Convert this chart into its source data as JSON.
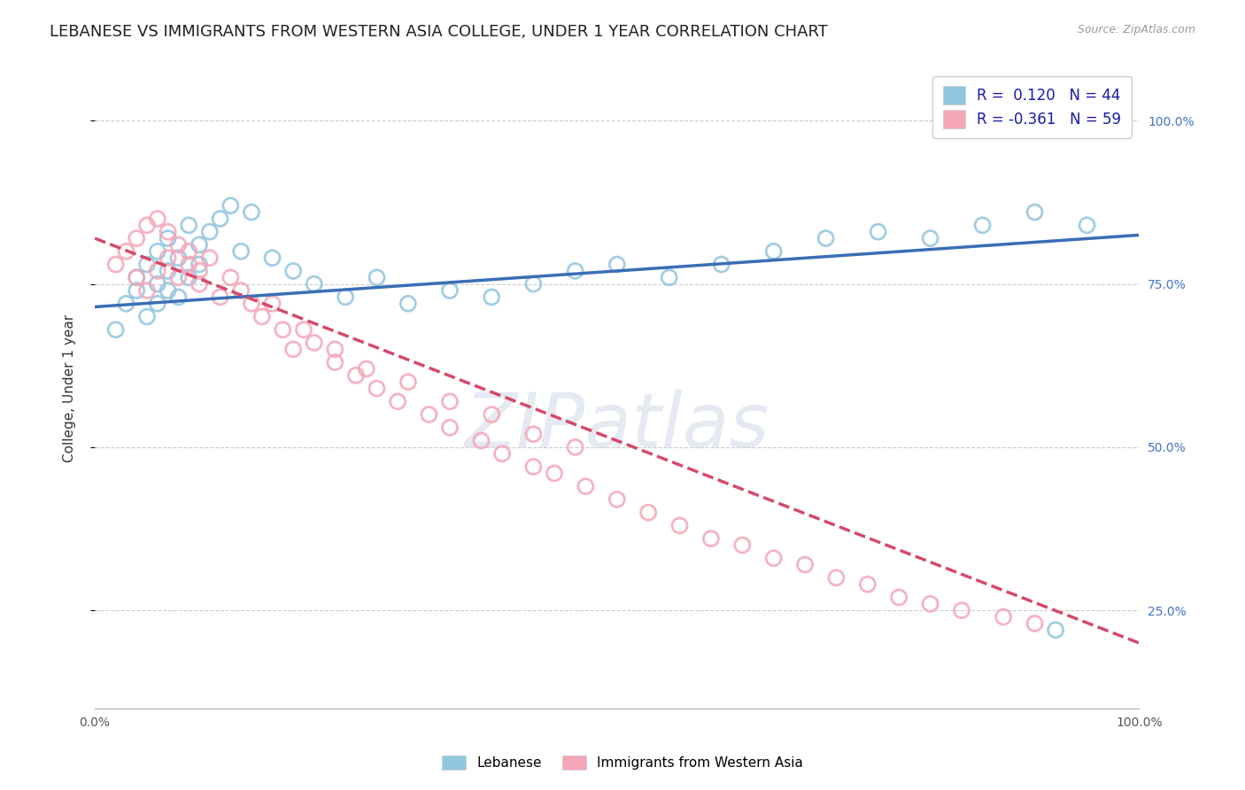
{
  "title": "LEBANESE VS IMMIGRANTS FROM WESTERN ASIA COLLEGE, UNDER 1 YEAR CORRELATION CHART",
  "source_text": "Source: ZipAtlas.com",
  "ylabel": "College, Under 1 year",
  "legend_label_blue": "Lebanese",
  "legend_label_pink": "Immigrants from Western Asia",
  "R_blue": 0.12,
  "N_blue": 44,
  "R_pink": -0.361,
  "N_pink": 59,
  "xlim": [
    0.0,
    1.0
  ],
  "ylim": [
    0.1,
    1.08
  ],
  "x_ticks": [
    0.0,
    0.25,
    0.5,
    0.75,
    1.0
  ],
  "y_ticks": [
    0.25,
    0.5,
    0.75,
    1.0
  ],
  "y_tick_labels": [
    "25.0%",
    "50.0%",
    "75.0%",
    "100.0%"
  ],
  "color_blue": "#92c5de",
  "color_pink": "#f4a6b8",
  "line_color_blue": "#3a6eb5",
  "line_color_pink": "#d44a6a",
  "blue_x": [
    0.02,
    0.03,
    0.04,
    0.04,
    0.05,
    0.05,
    0.06,
    0.06,
    0.06,
    0.07,
    0.07,
    0.07,
    0.08,
    0.08,
    0.09,
    0.09,
    0.1,
    0.1,
    0.11,
    0.12,
    0.13,
    0.14,
    0.15,
    0.17,
    0.19,
    0.21,
    0.24,
    0.27,
    0.3,
    0.34,
    0.38,
    0.42,
    0.46,
    0.5,
    0.55,
    0.6,
    0.65,
    0.7,
    0.75,
    0.8,
    0.85,
    0.9,
    0.95,
    0.92
  ],
  "blue_y": [
    0.68,
    0.72,
    0.74,
    0.76,
    0.7,
    0.78,
    0.72,
    0.75,
    0.8,
    0.74,
    0.77,
    0.82,
    0.73,
    0.79,
    0.76,
    0.84,
    0.78,
    0.81,
    0.83,
    0.85,
    0.87,
    0.8,
    0.86,
    0.79,
    0.77,
    0.75,
    0.73,
    0.76,
    0.72,
    0.74,
    0.73,
    0.75,
    0.77,
    0.78,
    0.76,
    0.78,
    0.8,
    0.82,
    0.83,
    0.82,
    0.84,
    0.86,
    0.84,
    0.22
  ],
  "pink_x": [
    0.02,
    0.03,
    0.04,
    0.04,
    0.05,
    0.05,
    0.06,
    0.06,
    0.07,
    0.07,
    0.08,
    0.08,
    0.09,
    0.09,
    0.1,
    0.1,
    0.11,
    0.12,
    0.13,
    0.14,
    0.15,
    0.16,
    0.18,
    0.19,
    0.21,
    0.23,
    0.25,
    0.27,
    0.29,
    0.32,
    0.34,
    0.37,
    0.39,
    0.42,
    0.44,
    0.47,
    0.5,
    0.53,
    0.56,
    0.59,
    0.62,
    0.65,
    0.68,
    0.71,
    0.74,
    0.77,
    0.8,
    0.83,
    0.87,
    0.9,
    0.17,
    0.2,
    0.23,
    0.26,
    0.3,
    0.34,
    0.38,
    0.42,
    0.46
  ],
  "pink_y": [
    0.78,
    0.8,
    0.76,
    0.82,
    0.74,
    0.84,
    0.77,
    0.85,
    0.79,
    0.83,
    0.76,
    0.81,
    0.78,
    0.8,
    0.75,
    0.77,
    0.79,
    0.73,
    0.76,
    0.74,
    0.72,
    0.7,
    0.68,
    0.65,
    0.66,
    0.63,
    0.61,
    0.59,
    0.57,
    0.55,
    0.53,
    0.51,
    0.49,
    0.47,
    0.46,
    0.44,
    0.42,
    0.4,
    0.38,
    0.36,
    0.35,
    0.33,
    0.32,
    0.3,
    0.29,
    0.27,
    0.26,
    0.25,
    0.24,
    0.23,
    0.72,
    0.68,
    0.65,
    0.62,
    0.6,
    0.57,
    0.55,
    0.52,
    0.5
  ],
  "blue_line_x": [
    0.0,
    1.0
  ],
  "blue_line_y": [
    0.715,
    0.825
  ],
  "pink_line_x": [
    0.0,
    1.0
  ],
  "pink_line_y": [
    0.82,
    0.2
  ],
  "background_color": "#ffffff",
  "grid_color": "#cccccc",
  "title_fontsize": 13,
  "axis_label_fontsize": 11,
  "tick_fontsize": 10,
  "legend_fontsize": 12
}
